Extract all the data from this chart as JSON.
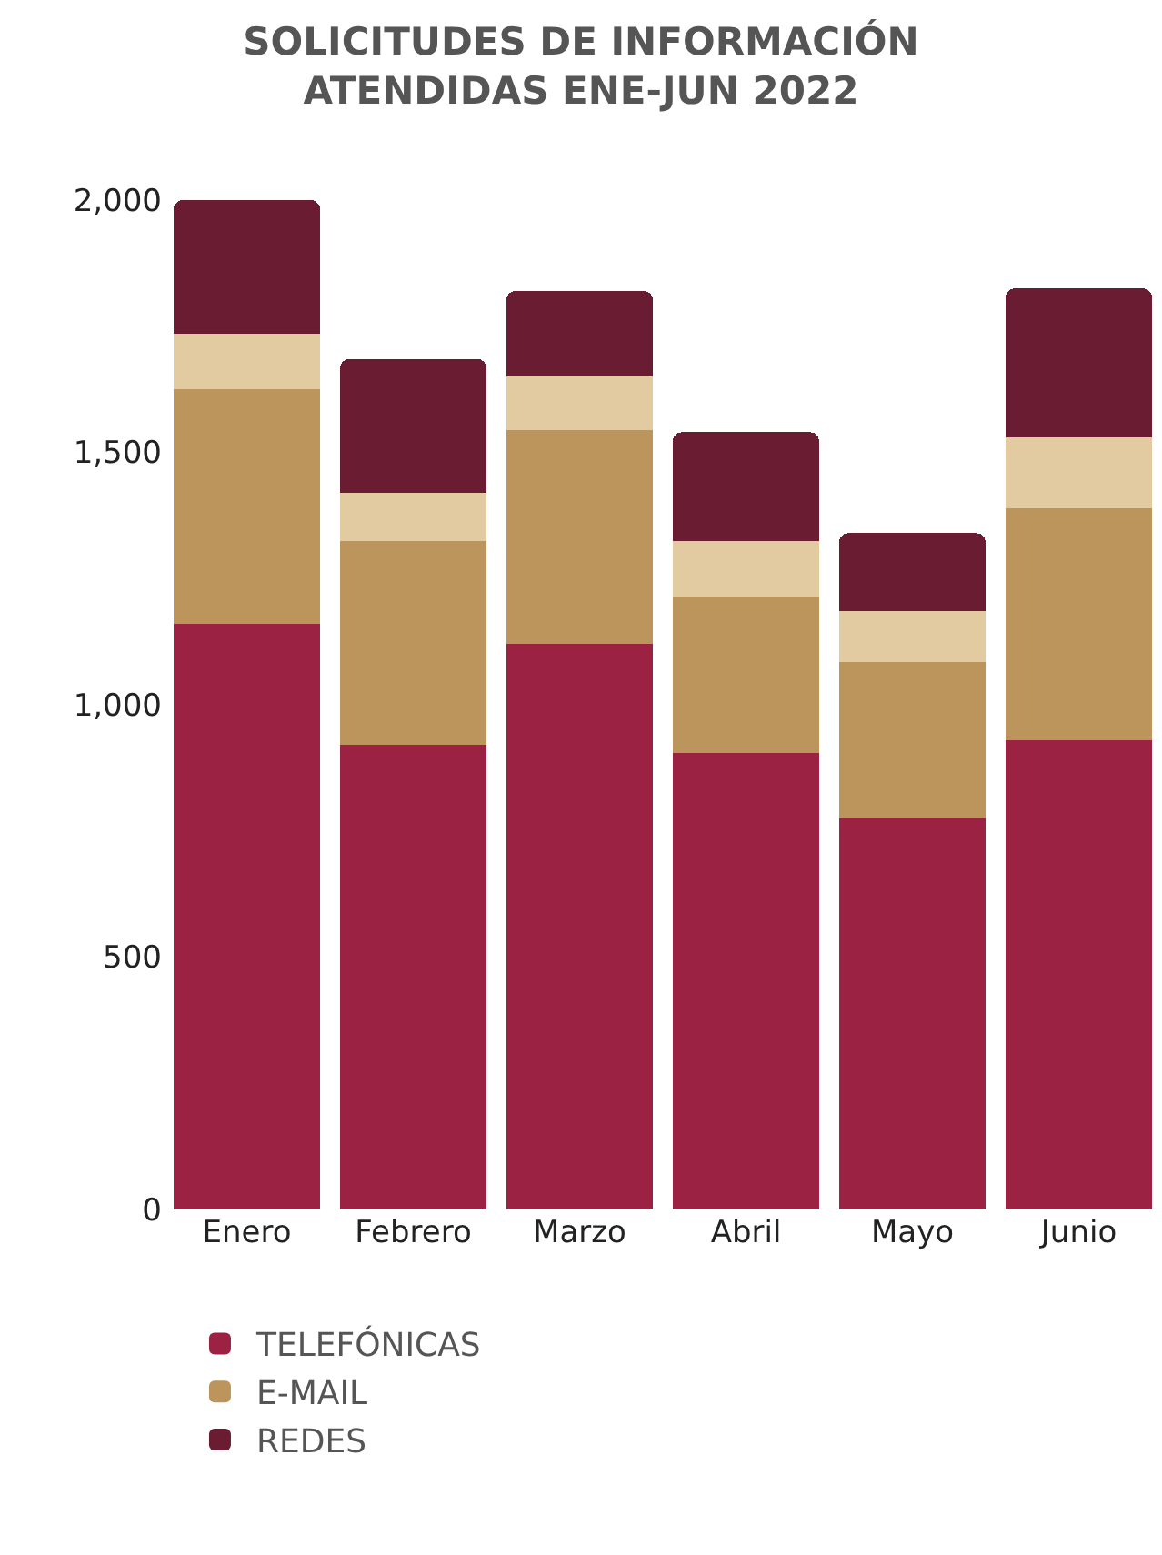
{
  "chart_data": {
    "type": "bar",
    "title": "SOLICITUDES DE INFORMACIÓN\nATENDIDAS ENE-JUN 2022",
    "stacked": true,
    "categories": [
      "Enero",
      "Febrero",
      "Marzo",
      "Abril",
      "Mayo",
      "Junio"
    ],
    "series": [
      {
        "name": "TELEFÓNICAS",
        "color": "#9b2242",
        "values": [
          1160,
          920,
          1120,
          905,
          775,
          930
        ]
      },
      {
        "name": "E-MAIL",
        "color": "#bc955c",
        "values": [
          465,
          405,
          425,
          310,
          310,
          460
        ]
      },
      {
        "color": "#e2cba0",
        "values": [
          110,
          95,
          105,
          110,
          100,
          140
        ]
      },
      {
        "name": "REDES",
        "color": "#691c32",
        "values": [
          265,
          265,
          170,
          215,
          155,
          295
        ]
      }
    ],
    "ylim": [
      0,
      2000
    ],
    "yticks": [
      0,
      500,
      {
        "value": 1000,
        "label": "1,000"
      },
      {
        "value": 1500,
        "label": "1,500"
      },
      {
        "value": 2000,
        "label": "2,000"
      }
    ],
    "grid": false,
    "legend": "bottom"
  }
}
